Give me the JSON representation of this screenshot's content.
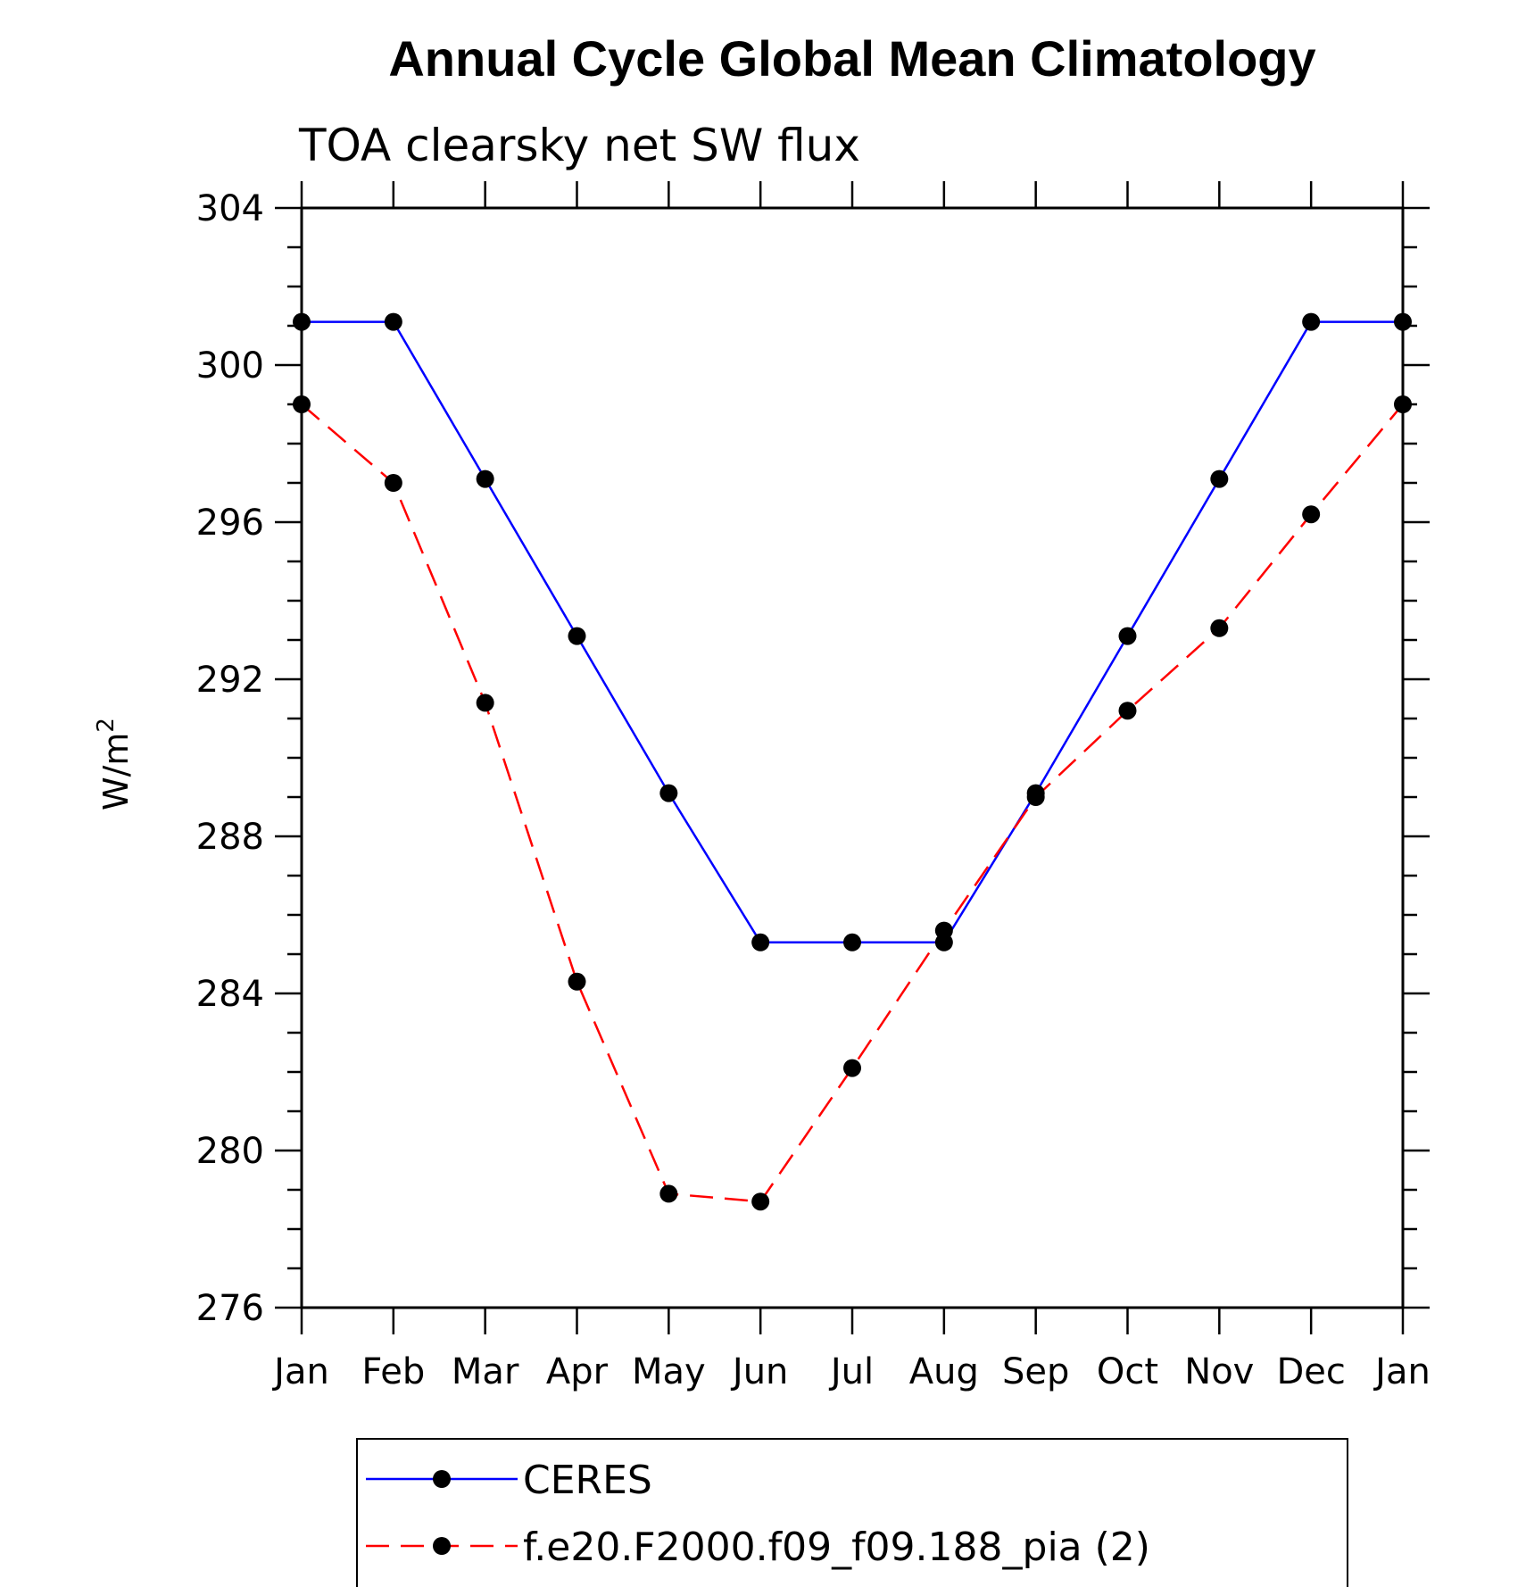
{
  "chart_data": {
    "type": "line",
    "title": "Annual Cycle Global Mean Climatology",
    "subtitle": "TOA clearsky net SW flux",
    "ylabel_base": "W/m",
    "ylabel_sup": "2",
    "xlabel": "",
    "categories": [
      "Jan",
      "Feb",
      "Mar",
      "Apr",
      "May",
      "Jun",
      "Jul",
      "Aug",
      "Sep",
      "Oct",
      "Nov",
      "Dec",
      "Jan"
    ],
    "ylim": [
      276,
      304
    ],
    "yticks": [
      276,
      280,
      284,
      288,
      292,
      296,
      300,
      304
    ],
    "grid": false,
    "legend_position": "bottom",
    "series": [
      {
        "name": "CERES",
        "color": "#0000ff",
        "dash": "solid",
        "values": [
          301.1,
          301.1,
          297.1,
          293.1,
          289.1,
          285.3,
          285.3,
          285.3,
          289.1,
          293.1,
          297.1,
          301.1,
          301.1
        ]
      },
      {
        "name": "f.e20.F2000.f09_f09.188_pia (2)",
        "color": "#ff0000",
        "dash": "dashed",
        "values": [
          299.0,
          297.0,
          291.4,
          284.3,
          278.9,
          278.7,
          282.1,
          285.6,
          289.0,
          291.2,
          293.3,
          296.2,
          299.0
        ]
      }
    ],
    "marker_color": "#000000"
  }
}
